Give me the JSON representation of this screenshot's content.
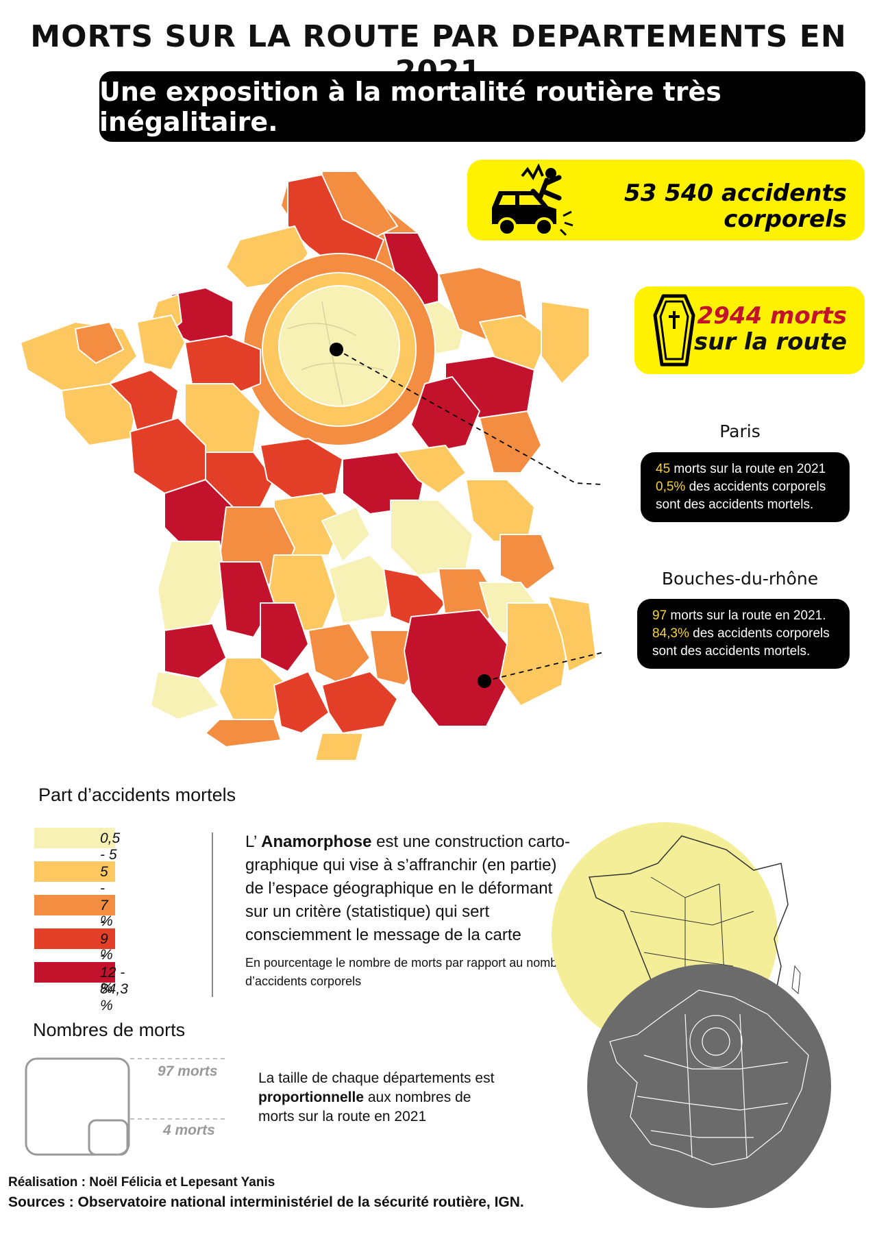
{
  "title": "MORTS SUR LA ROUTE PAR DEPARTEMENTS EN 2021",
  "subtitle": "Une exposition à la mortalité routière très inégalitaire.",
  "stats": {
    "accidents_line1": "53 540 accidents",
    "accidents_line2": "corporels",
    "deaths_line1": "2944 morts",
    "deaths_line2": "sur la route"
  },
  "callouts": {
    "paris": {
      "title": "Paris",
      "line1_value": "45",
      "line1_rest": " morts sur la route en 2021",
      "line2_value": "0,5%",
      "line2_rest": " des accidents corporels",
      "line3": "sont des accidents mortels."
    },
    "bdr": {
      "title": "Bouches-du-rhône",
      "line1_value": "97",
      "line1_rest": " morts sur la route en 2021.",
      "line2_value": "84,3%",
      "line2_rest": " des accidents corporels",
      "line3": "sont des accidents mortels."
    }
  },
  "legend": {
    "title": "Part d’accidents mortels",
    "classes": [
      {
        "label": "0,5 - 5 %",
        "color": "#f8f1b5"
      },
      {
        "label": "5 - 7 %",
        "color": "#fcc85f"
      },
      {
        "label": "7 - 9 %",
        "color": "#f28d41"
      },
      {
        "label": "9 - 12 %",
        "color": "#e33e28"
      },
      {
        "label": "12 - 84,3 %",
        "color": "#c3122b"
      }
    ]
  },
  "anamorphose": {
    "prefix": "L’ ",
    "bold": "Anamorphose",
    "line1_rest": " est une construction carto-",
    "line2": "graphique qui vise à s’affranchir (en partie)",
    "line3": "de l’espace géographique en le déformant",
    "line4": "sur un critère (statistique) qui sert",
    "line5": "consciemment le message de la carte",
    "note1": "En pourcentage le nombre de morts par rapport au nombre",
    "note2": "d’accidents corporels"
  },
  "size_legend": {
    "title": "Nombres de morts",
    "big": "97 morts",
    "small": "4 morts",
    "text1": "La taille de chaque départements est",
    "text2_bold": "proportionnelle",
    "text2_rest": " aux nombres de",
    "text3": "morts sur la route en 2021"
  },
  "credits": {
    "realisation": "Réalisation : Noël Félicia et Lepesant Yanis",
    "sources": "Sources : Observatoire national interministériel de la sécurité routière, IGN."
  },
  "colors": {
    "yellow_card": "#fff200",
    "deaths_red": "#c3122b",
    "highlight": "#f5d23a",
    "inset_yellow": "#f4ee98",
    "inset_grey": "#6b6b6b"
  },
  "icons": [
    "car-crash-icon",
    "coffin-icon"
  ]
}
